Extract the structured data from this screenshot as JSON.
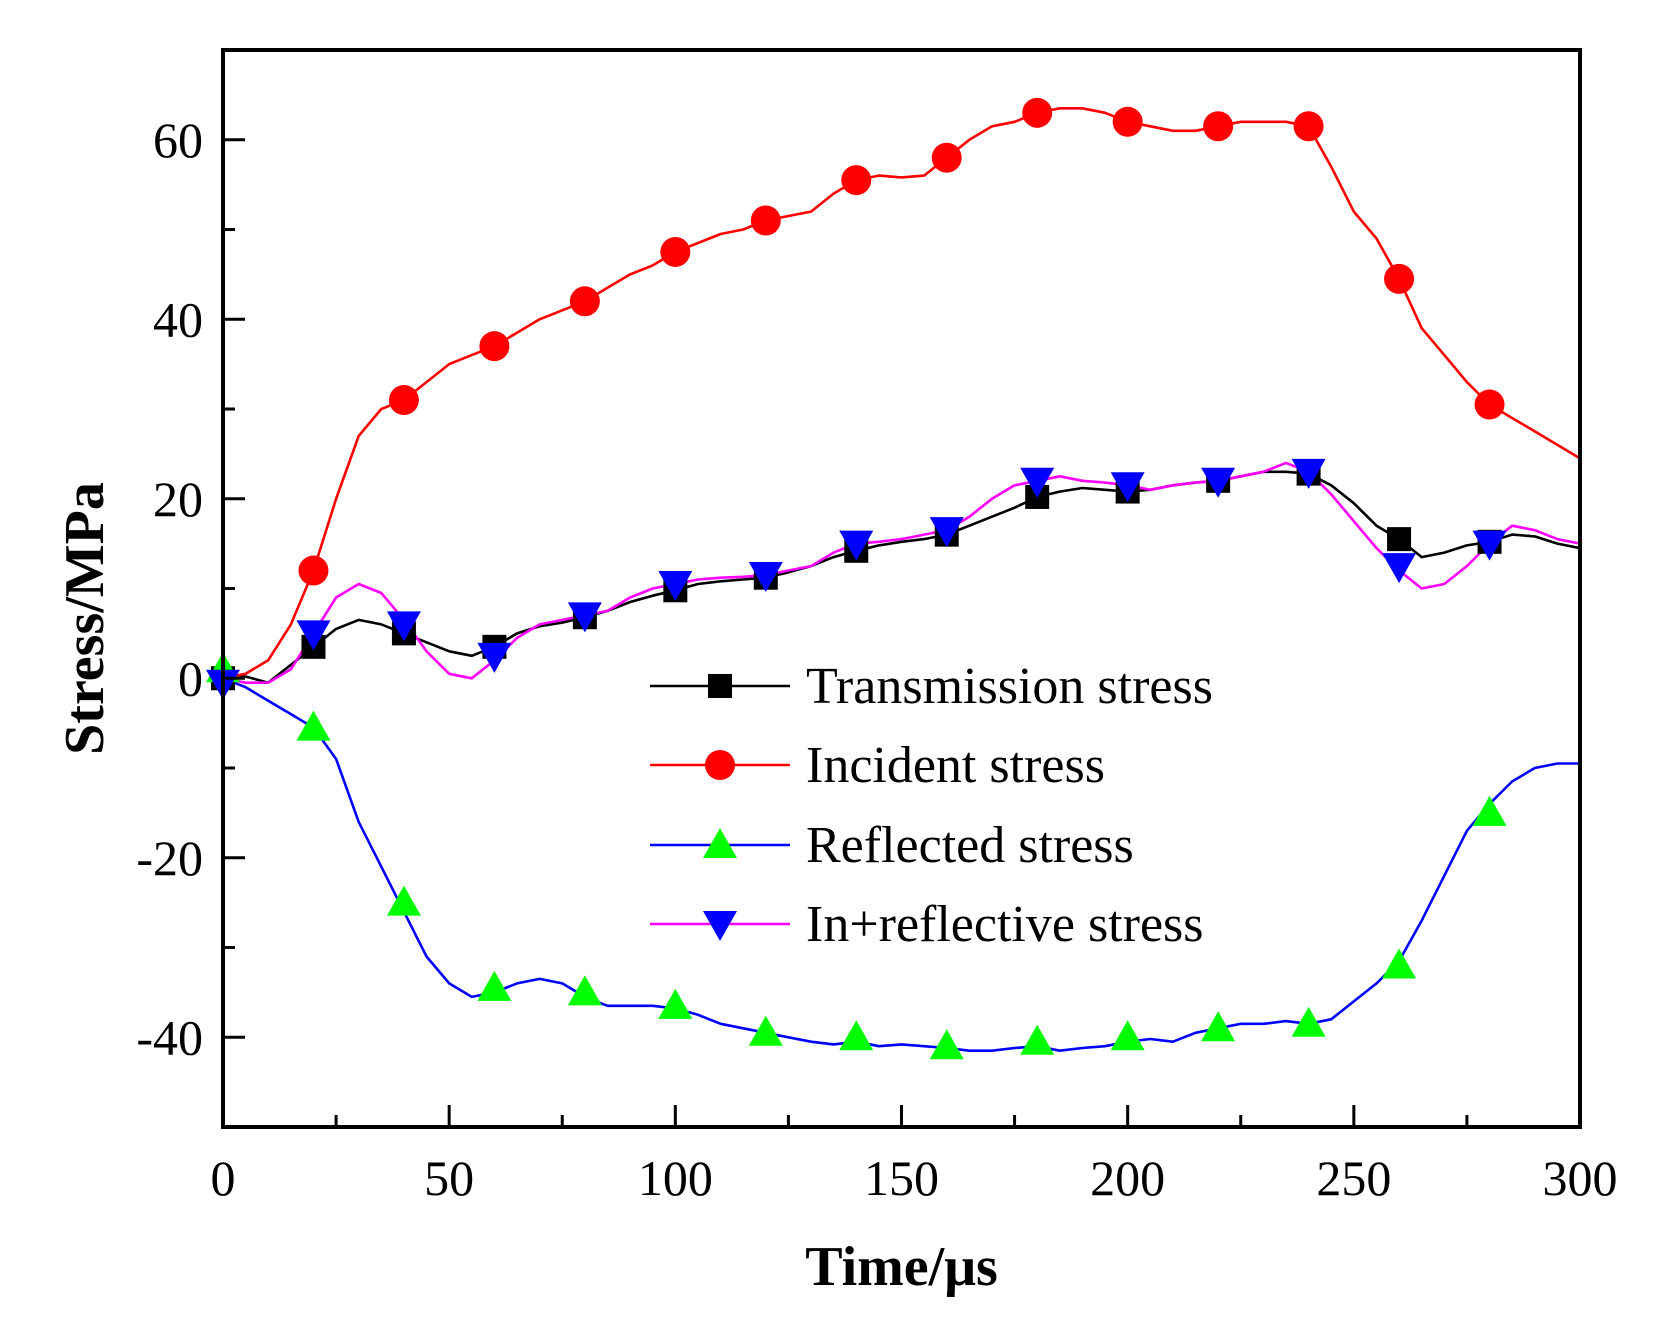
{
  "chart_data": {
    "type": "line",
    "title": "",
    "xlabel": "Time/μs",
    "ylabel": "Stress/MPa",
    "xlim": [
      0,
      300
    ],
    "ylim": [
      -50,
      70
    ],
    "xticks": [
      0,
      50,
      100,
      150,
      200,
      250,
      300
    ],
    "yticks": [
      -40,
      -20,
      0,
      20,
      40,
      60
    ],
    "grid": false,
    "legend_position": "center-right",
    "series": [
      {
        "name": "Transmission stress",
        "color": "#000000",
        "marker": "square",
        "marker_color": "#000000",
        "x": [
          0,
          5,
          10,
          15,
          20,
          25,
          30,
          35,
          40,
          45,
          50,
          55,
          60,
          65,
          70,
          75,
          80,
          85,
          90,
          95,
          100,
          105,
          110,
          115,
          120,
          125,
          130,
          135,
          140,
          145,
          150,
          155,
          160,
          165,
          170,
          175,
          180,
          185,
          190,
          195,
          200,
          205,
          210,
          215,
          220,
          225,
          230,
          235,
          240,
          245,
          250,
          255,
          260,
          265,
          270,
          275,
          280,
          285,
          290,
          295,
          300
        ],
        "y": [
          0.0,
          0.2,
          -0.5,
          1.5,
          3.5,
          5.5,
          6.5,
          6.0,
          5.0,
          4.0,
          3.0,
          2.5,
          3.5,
          5.0,
          5.8,
          6.2,
          6.8,
          7.5,
          8.5,
          9.2,
          9.8,
          10.5,
          10.8,
          11.0,
          11.2,
          11.8,
          12.5,
          13.5,
          14.2,
          14.8,
          15.2,
          15.5,
          16.0,
          17.0,
          18.0,
          19.0,
          20.2,
          20.8,
          21.2,
          21.0,
          20.8,
          21.0,
          21.5,
          21.8,
          22.0,
          22.5,
          23.0,
          23.0,
          22.8,
          21.5,
          19.5,
          17.0,
          15.5,
          13.5,
          14.0,
          14.8,
          15.2,
          16.0,
          15.8,
          15.0,
          14.5
        ],
        "marker_x": [
          0,
          20,
          40,
          60,
          80,
          100,
          120,
          140,
          160,
          180,
          200,
          220,
          240,
          260,
          280
        ],
        "marker_y": [
          0.0,
          3.5,
          5.0,
          3.5,
          6.8,
          9.8,
          11.2,
          14.2,
          16.0,
          20.2,
          20.8,
          22.0,
          22.8,
          15.5,
          15.2
        ]
      },
      {
        "name": "Incident stress",
        "color": "#ff0000",
        "marker": "circle",
        "marker_color": "#ff0000",
        "x": [
          0,
          5,
          10,
          15,
          20,
          25,
          30,
          35,
          40,
          45,
          50,
          55,
          60,
          65,
          70,
          75,
          80,
          85,
          90,
          95,
          100,
          105,
          110,
          115,
          120,
          125,
          130,
          135,
          140,
          145,
          150,
          155,
          160,
          165,
          170,
          175,
          180,
          185,
          190,
          195,
          200,
          205,
          210,
          215,
          220,
          225,
          230,
          235,
          240,
          245,
          250,
          255,
          260,
          265,
          270,
          275,
          280,
          285,
          290,
          295,
          300
        ],
        "y": [
          0.0,
          0.5,
          2.0,
          6.0,
          12.0,
          20.0,
          27.0,
          30.0,
          31.0,
          33.0,
          35.0,
          36.0,
          37.0,
          38.5,
          40.0,
          41.0,
          42.0,
          43.5,
          45.0,
          46.0,
          47.5,
          48.5,
          49.5,
          50.0,
          51.0,
          51.5,
          52.0,
          54.0,
          55.5,
          56.0,
          55.8,
          56.0,
          58.0,
          60.0,
          61.5,
          62.0,
          63.0,
          63.5,
          63.5,
          63.0,
          62.0,
          61.5,
          61.0,
          61.0,
          61.5,
          62.0,
          62.0,
          62.0,
          61.5,
          57.0,
          52.0,
          49.0,
          44.5,
          39.0,
          36.0,
          33.0,
          30.5,
          29.0,
          27.5,
          26.0,
          24.5
        ],
        "marker_x": [
          20,
          40,
          60,
          80,
          100,
          120,
          140,
          160,
          180,
          200,
          220,
          240,
          260,
          280
        ],
        "marker_y": [
          12.0,
          31.0,
          37.0,
          42.0,
          47.5,
          51.0,
          55.5,
          58.0,
          63.0,
          62.0,
          61.5,
          61.5,
          44.5,
          30.5
        ]
      },
      {
        "name": "Reflected stress",
        "color": "#0000ff",
        "marker": "triangle-up",
        "marker_color": "#00ff00",
        "x": [
          0,
          5,
          10,
          15,
          20,
          25,
          30,
          35,
          40,
          45,
          50,
          55,
          60,
          65,
          70,
          75,
          80,
          85,
          90,
          95,
          100,
          105,
          110,
          115,
          120,
          125,
          130,
          135,
          140,
          145,
          150,
          155,
          160,
          165,
          170,
          175,
          180,
          185,
          190,
          195,
          200,
          205,
          210,
          215,
          220,
          225,
          230,
          235,
          240,
          245,
          250,
          255,
          260,
          265,
          270,
          275,
          280,
          285,
          290,
          295,
          300
        ],
        "y": [
          0.0,
          -1.0,
          -2.5,
          -4.0,
          -5.5,
          -9.0,
          -16.0,
          -21.0,
          -26.0,
          -31.0,
          -34.0,
          -35.5,
          -35.0,
          -34.0,
          -33.5,
          -34.0,
          -35.5,
          -36.5,
          -36.5,
          -36.5,
          -36.8,
          -37.5,
          -38.5,
          -39.0,
          -39.5,
          -40.0,
          -40.5,
          -40.8,
          -40.5,
          -41.0,
          -40.8,
          -41.0,
          -41.2,
          -41.5,
          -41.5,
          -41.2,
          -41.0,
          -41.5,
          -41.2,
          -41.0,
          -40.5,
          -40.2,
          -40.5,
          -39.5,
          -39.0,
          -38.5,
          -38.5,
          -38.2,
          -38.5,
          -38.0,
          -36.0,
          -34.0,
          -31.5,
          -27.0,
          -22.0,
          -17.0,
          -14.0,
          -11.5,
          -10.0,
          -9.5,
          -9.5
        ],
        "marker_x": [
          0,
          20,
          40,
          60,
          80,
          100,
          120,
          140,
          160,
          180,
          200,
          220,
          240,
          260,
          280
        ],
        "marker_y": [
          1.0,
          -5.5,
          -25.0,
          -34.5,
          -35.0,
          -36.5,
          -39.5,
          -40.0,
          -41.0,
          -40.5,
          -40.0,
          -39.0,
          -38.5,
          -32.0,
          -15.0
        ]
      },
      {
        "name": "In+reflective stress",
        "color": "#ff00ff",
        "marker": "triangle-down",
        "marker_color": "#0000ff",
        "x": [
          0,
          5,
          10,
          15,
          20,
          25,
          30,
          35,
          40,
          45,
          50,
          55,
          60,
          65,
          70,
          75,
          80,
          85,
          90,
          95,
          100,
          105,
          110,
          115,
          120,
          125,
          130,
          135,
          140,
          145,
          150,
          155,
          160,
          165,
          170,
          175,
          180,
          185,
          190,
          195,
          200,
          205,
          210,
          215,
          220,
          225,
          230,
          235,
          240,
          245,
          250,
          255,
          260,
          265,
          270,
          275,
          280,
          285,
          290,
          295,
          300
        ],
        "y": [
          0.0,
          -0.5,
          -0.5,
          1.0,
          5.0,
          9.0,
          10.5,
          9.5,
          6.5,
          3.0,
          0.5,
          0.0,
          2.0,
          4.5,
          6.0,
          6.5,
          7.0,
          7.5,
          9.0,
          10.0,
          10.5,
          11.0,
          11.2,
          11.3,
          11.5,
          12.0,
          12.5,
          14.0,
          15.0,
          15.2,
          15.5,
          16.0,
          16.5,
          18.0,
          20.0,
          21.5,
          22.0,
          22.5,
          22.0,
          21.8,
          21.5,
          21.0,
          21.5,
          21.8,
          22.0,
          22.5,
          23.0,
          24.0,
          23.0,
          20.5,
          17.5,
          14.5,
          12.0,
          10.0,
          10.5,
          12.5,
          15.0,
          17.0,
          16.5,
          15.5,
          15.0
        ],
        "marker_x": [
          0,
          20,
          40,
          60,
          80,
          100,
          120,
          140,
          160,
          180,
          200,
          220,
          240,
          260,
          280
        ],
        "marker_y": [
          -0.5,
          5.0,
          6.0,
          2.5,
          7.0,
          10.5,
          11.5,
          15.0,
          16.5,
          22.0,
          21.5,
          22.0,
          23.0,
          12.5,
          15.0
        ]
      }
    ]
  }
}
